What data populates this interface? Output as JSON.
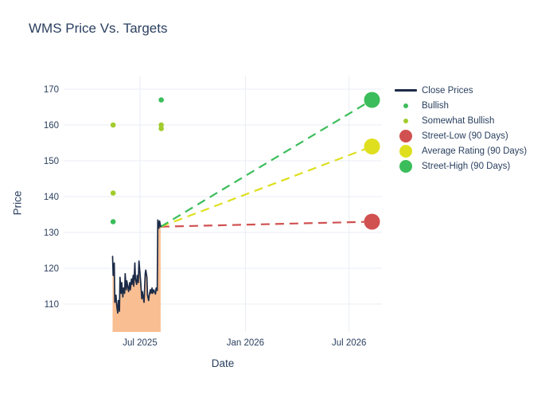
{
  "title": "WMS Price Vs. Targets",
  "axes": {
    "x": {
      "title": "Date",
      "tick_labels": [
        "Jul 2025",
        "Jan 2026",
        "Jul 2026"
      ],
      "tick_dates": [
        "2025-07-01",
        "2026-01-01",
        "2026-07-01"
      ]
    },
    "y": {
      "title": "Price",
      "ticks": [
        110,
        120,
        130,
        140,
        150,
        160,
        170
      ]
    }
  },
  "colors": {
    "text": "#2a3f5f",
    "grid": "#e9eef6",
    "close_line": "#1c2b47",
    "close_fill": "#f9be92",
    "bullish": "#3cbd5b",
    "somewhat_bullish": "#a2cb2e",
    "street_low": "#d05150",
    "average_rating": "#dfdf20",
    "street_high": "#3cbd5b"
  },
  "legend": {
    "items": [
      {
        "label": "Close Prices",
        "marker": "line",
        "color_key": "close_line"
      },
      {
        "label": "Bullish",
        "marker": "dot-small",
        "color_key": "bullish"
      },
      {
        "label": "Somewhat Bullish",
        "marker": "dot-small",
        "color_key": "somewhat_bullish"
      },
      {
        "label": "Street-Low (90 Days)",
        "marker": "dot-large",
        "color_key": "street_low"
      },
      {
        "label": "Average Rating (90 Days)",
        "marker": "dot-large",
        "color_key": "average_rating"
      },
      {
        "label": "Street-High (90 Days)",
        "marker": "dot-large",
        "color_key": "street_high"
      }
    ]
  },
  "chart_data": {
    "type": "line",
    "title": "WMS Price Vs. Targets",
    "xlabel": "Date",
    "ylabel": "Price",
    "ylim": [
      102,
      174
    ],
    "x_tick_labels": [
      "Jul 2025",
      "Jan 2026",
      "Jul 2026"
    ],
    "y_ticks": [
      110,
      120,
      130,
      140,
      150,
      160,
      170
    ],
    "grid": true,
    "legend_position": "right",
    "series": {
      "close_prices": {
        "name": "Close Prices",
        "start_date": "2025-05-14",
        "step_days": 1.5,
        "prices": [
          123.3,
          118.0,
          121.5,
          110.5,
          112.5,
          110.0,
          107.5,
          111.0,
          108.0,
          117.5,
          113.0,
          116.0,
          112.0,
          114.5,
          113.0,
          118.5,
          114.0,
          116.5,
          114.5,
          113.5,
          116.0,
          114.0,
          117.0,
          115.5,
          118.0,
          115.0,
          121.5,
          117.0,
          115.5,
          118.0,
          116.0,
          122.0,
          118.5,
          116.5,
          111.5,
          113.5,
          111.5,
          110.5,
          118.5,
          119.5,
          117.5,
          112.5,
          111.0,
          112.5,
          114.0,
          113.0,
          114.5,
          113.0,
          114.0,
          113.5,
          112.8,
          114.5,
          113.8,
          133.5,
          131.2,
          133.2,
          131.6
        ]
      },
      "bullish": {
        "name": "Bullish",
        "points": [
          {
            "date": "2025-05-15",
            "price": 133
          },
          {
            "date": "2025-08-07",
            "price": 167
          }
        ]
      },
      "somewhat_bullish": {
        "name": "Somewhat Bullish",
        "points": [
          {
            "date": "2025-05-15",
            "price": 160
          },
          {
            "date": "2025-05-15",
            "price": 141
          },
          {
            "date": "2025-08-07",
            "price": 160
          },
          {
            "date": "2025-08-07",
            "price": 159
          }
        ]
      },
      "street_low": {
        "name": "Street-Low (90 Days)",
        "point": {
          "date": "2026-08-10",
          "price": 133
        }
      },
      "average_rating": {
        "name": "Average Rating (90 Days)",
        "point": {
          "date": "2026-08-10",
          "price": 154
        }
      },
      "street_high": {
        "name": "Street-High (90 Days)",
        "point": {
          "date": "2026-08-10",
          "price": 167
        }
      }
    }
  }
}
